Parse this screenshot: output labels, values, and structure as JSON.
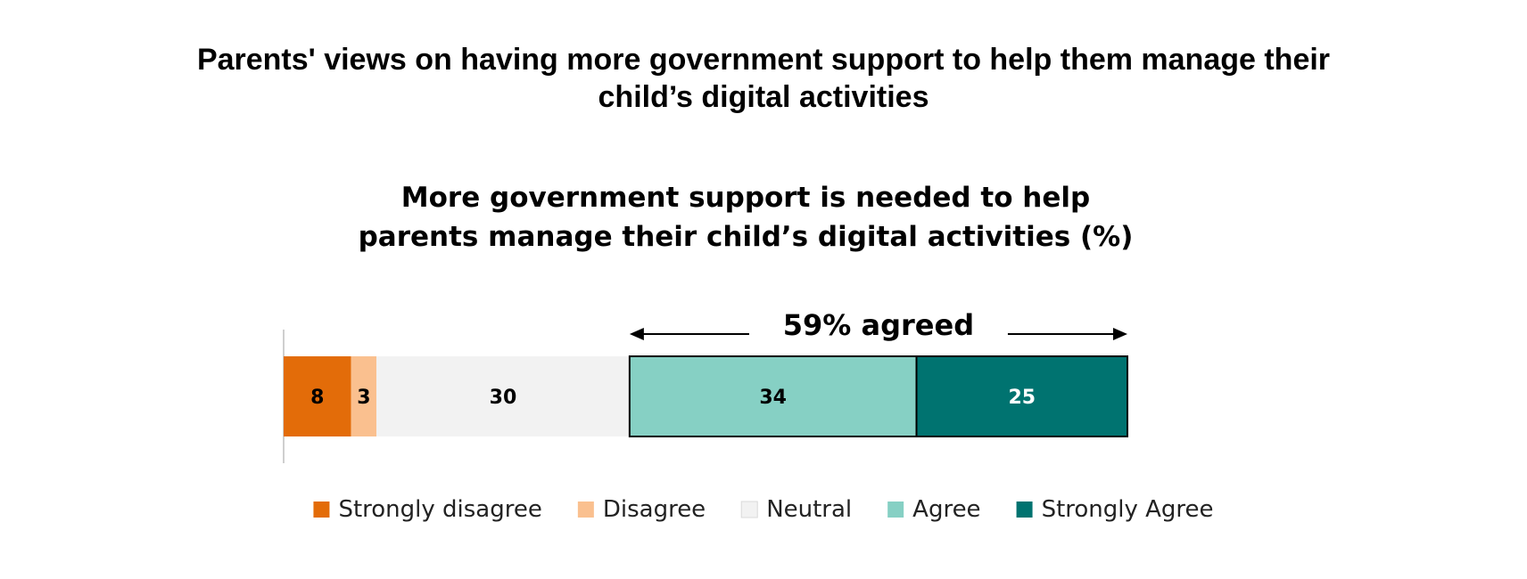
{
  "page_title": {
    "line1": "Parents' views on having more government support to help them manage their",
    "line2": "child’s digital activities"
  },
  "chart_data": {
    "type": "bar",
    "orientation": "horizontal",
    "stacked": true,
    "title_lines": [
      "More government support is needed to help",
      "parents manage their child’s digital activities (%)"
    ],
    "unit": "%",
    "categories": [
      "More government support is needed to help parents manage their child’s digital activities"
    ],
    "series": [
      {
        "name": "Strongly disagree",
        "values": [
          8
        ],
        "color": "#E36C09",
        "label_color": "#000000"
      },
      {
        "name": "Disagree",
        "values": [
          3
        ],
        "color": "#FAC08F",
        "label_color": "#000000"
      },
      {
        "name": "Neutral",
        "values": [
          30
        ],
        "color": "#F2F2F2",
        "label_color": "#000000"
      },
      {
        "name": "Agree",
        "values": [
          34
        ],
        "color": "#86D0C4",
        "label_color": "#000000"
      },
      {
        "name": "Strongly Agree",
        "values": [
          25
        ],
        "color": "#007370",
        "label_color": "#FFFFFF"
      }
    ],
    "annotation": {
      "text": "59% agreed",
      "spans_series": [
        "Agree",
        "Strongly Agree"
      ]
    },
    "xlim": [
      0,
      100
    ],
    "legend_position": "bottom",
    "grid": false
  }
}
